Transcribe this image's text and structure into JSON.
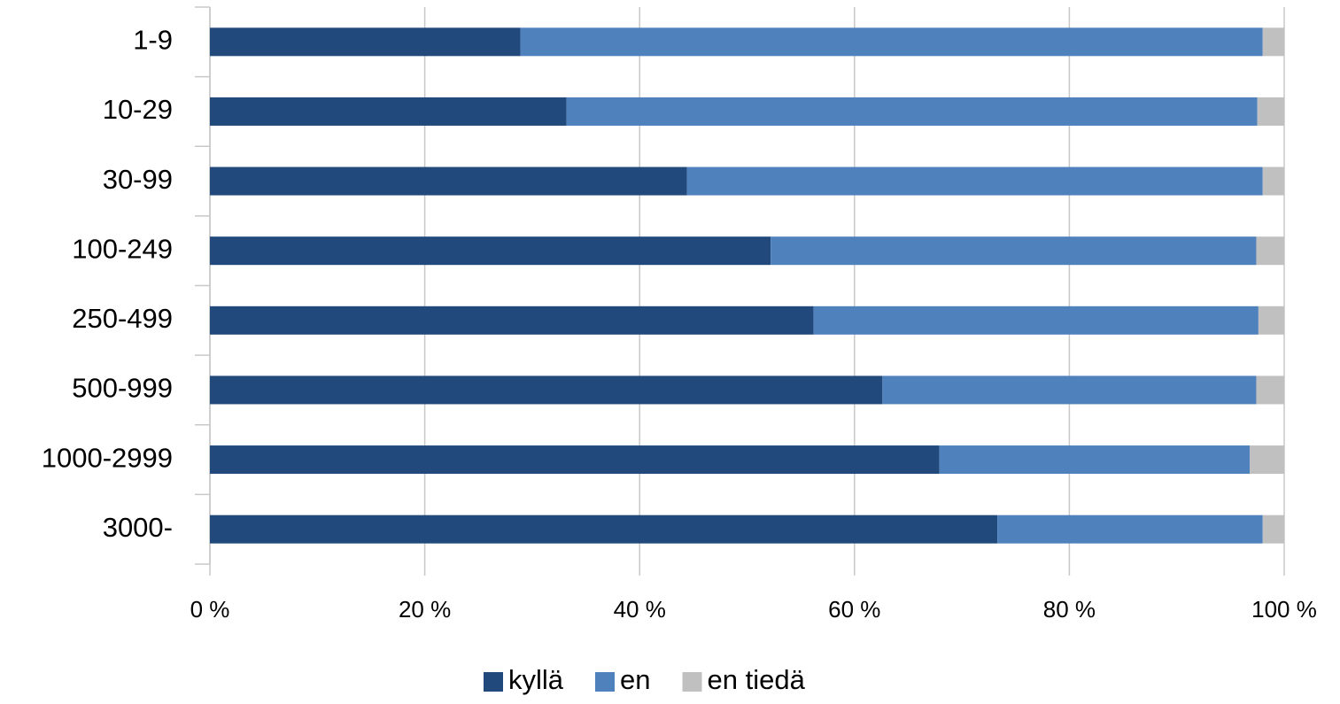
{
  "chart_data": {
    "type": "bar",
    "orientation": "horizontal",
    "stacked": true,
    "categories": [
      "1-9",
      "10-29",
      "30-99",
      "100-249",
      "250-499",
      "500-999",
      "1000-2999",
      "3000-"
    ],
    "series": [
      {
        "name": "kyllä",
        "color": "#21497c",
        "values": [
          28.9,
          33.2,
          44.4,
          52.2,
          56.2,
          62.6,
          67.9,
          73.3
        ]
      },
      {
        "name": "en",
        "color": "#4f81bd",
        "values": [
          69.1,
          64.3,
          53.6,
          45.2,
          41.4,
          34.8,
          28.9,
          24.7
        ]
      },
      {
        "name": "en tiedä",
        "color": "#c0c0c0",
        "values": [
          2.0,
          2.5,
          2.0,
          2.6,
          2.4,
          2.6,
          3.2,
          2.0
        ]
      }
    ],
    "xlim": [
      0,
      100
    ],
    "xticks": [
      {
        "value": 0,
        "label": "0 %"
      },
      {
        "value": 20,
        "label": "20 %"
      },
      {
        "value": 40,
        "label": "40 %"
      },
      {
        "value": 60,
        "label": "60 %"
      },
      {
        "value": 80,
        "label": "80 %"
      },
      {
        "value": 100,
        "label": "100 %"
      }
    ],
    "grid": true,
    "legend": "bottom"
  }
}
